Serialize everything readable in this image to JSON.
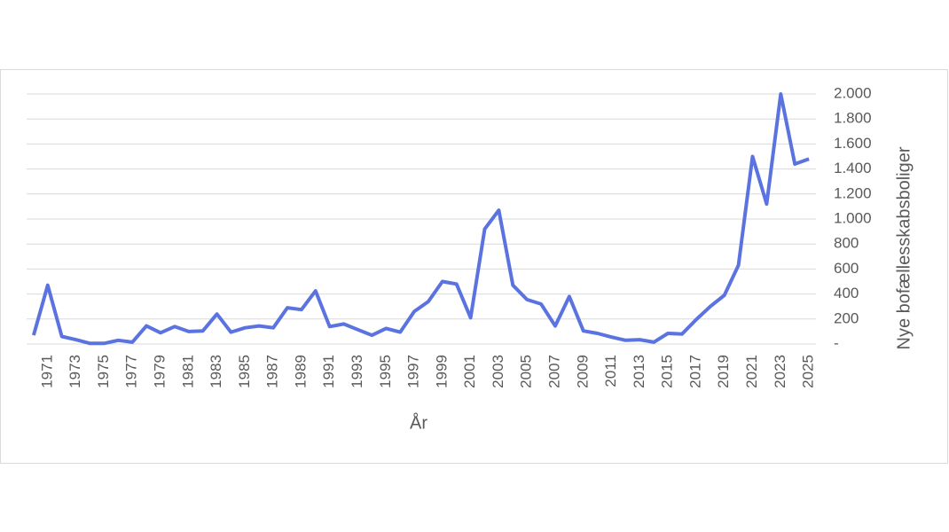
{
  "chart_data": {
    "type": "line",
    "x_label": "År",
    "y_label": "Nye bofællesskabsboliger",
    "categories": [
      null,
      "1971",
      null,
      "1973",
      null,
      "1975",
      null,
      "1977",
      null,
      "1979",
      null,
      "1981",
      null,
      "1983",
      null,
      "1985",
      null,
      "1987",
      null,
      "1989",
      null,
      "1991",
      null,
      "1993",
      null,
      "1995",
      null,
      "1997",
      null,
      "1999",
      null,
      "2001",
      null,
      "2003",
      null,
      "2005",
      null,
      "2007",
      null,
      "2009",
      null,
      "2011",
      null,
      "2013",
      null,
      "2015",
      null,
      "2017",
      null,
      "2019",
      null,
      "2021",
      null,
      "2023",
      null,
      "2025"
    ],
    "values": [
      70,
      470,
      60,
      35,
      5,
      5,
      30,
      15,
      145,
      90,
      140,
      100,
      105,
      240,
      95,
      130,
      145,
      130,
      290,
      275,
      425,
      140,
      160,
      115,
      70,
      125,
      95,
      260,
      340,
      500,
      480,
      210,
      920,
      1070,
      470,
      355,
      320,
      145,
      380,
      105,
      85,
      55,
      30,
      35,
      15,
      85,
      80,
      195,
      300,
      390,
      630,
      1500,
      1120,
      2000,
      1440,
      1480
    ],
    "color": "#5b73e0",
    "ylim": [
      0,
      2000
    ],
    "yticks": [
      {
        "value": 0,
        "label": "-"
      },
      200,
      400,
      600,
      800,
      {
        "value": 1000,
        "label": "1.000"
      },
      {
        "value": 1200,
        "label": "1.200"
      },
      {
        "value": 1400,
        "label": "1.400"
      },
      {
        "value": 1600,
        "label": "1.600"
      },
      {
        "value": 1800,
        "label": "1.800"
      },
      {
        "value": 2000,
        "label": "2.000"
      }
    ],
    "grid": true
  }
}
